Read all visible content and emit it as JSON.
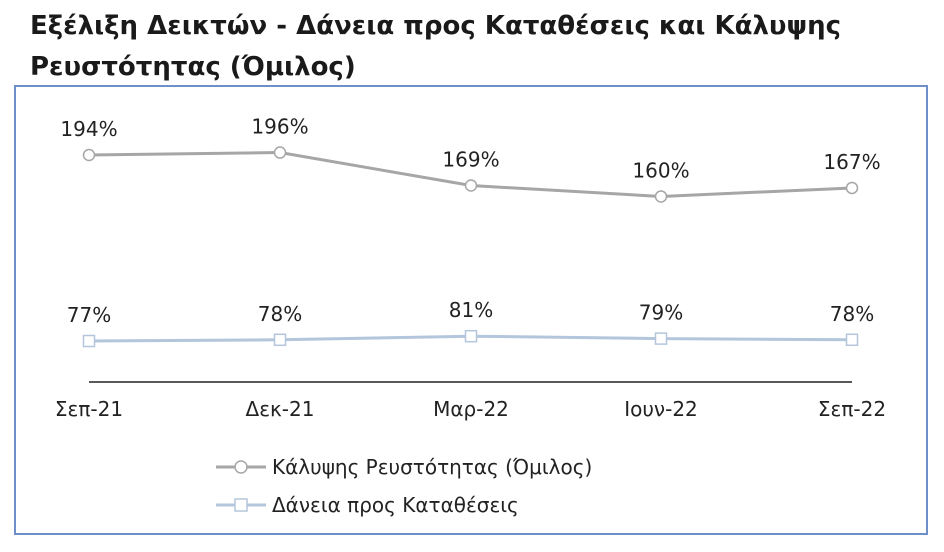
{
  "chart_data": {
    "type": "line",
    "title": "Εξέλιξη Δεικτών - Δάνεια προς Καταθέσεις και Κάλυψης Ρευστότητας (Όμιλος)",
    "categories": [
      "Σεπ-21",
      "Δεκ-21",
      "Μαρ-22",
      "Ιουν-22",
      "Σεπ-22"
    ],
    "series": [
      {
        "name": "Κάλυψης Ρευστότητας (Όμιλος)",
        "values": [
          194,
          196,
          169,
          160,
          167
        ],
        "labels": [
          "194%",
          "196%",
          "169%",
          "160%",
          "167%"
        ],
        "color": "#a6a6a6",
        "marker": "circle"
      },
      {
        "name": "Δάνεια προς Καταθέσεις",
        "values": [
          77,
          78,
          81,
          79,
          78
        ],
        "labels": [
          "77%",
          "78%",
          "81%",
          "79%",
          "78%"
        ],
        "color": "#b3c6dc",
        "marker": "square"
      }
    ],
    "legend_position": "bottom",
    "grid": false
  }
}
